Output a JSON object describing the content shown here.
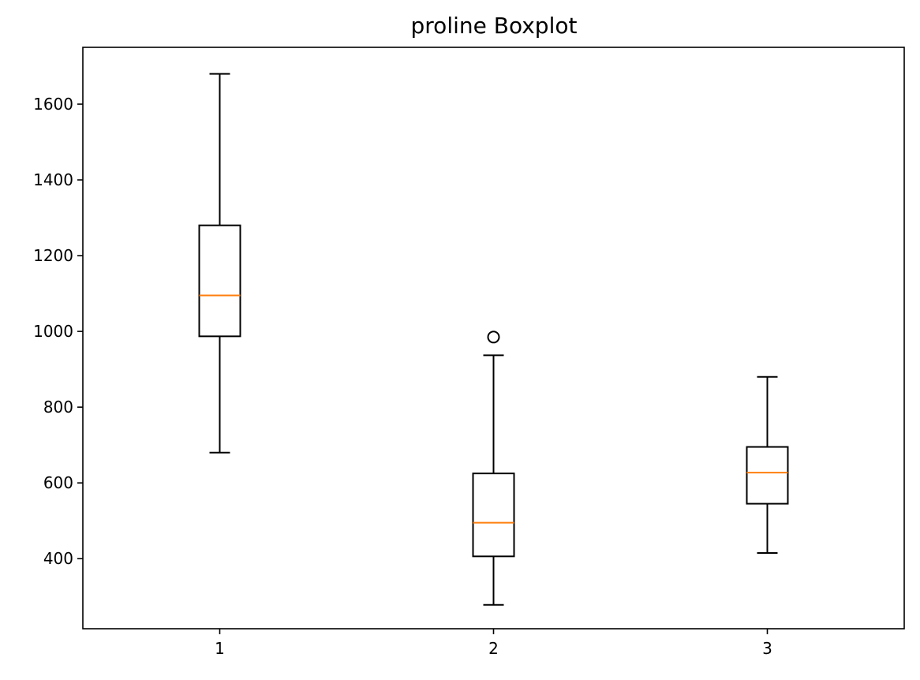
{
  "chart_data": {
    "type": "boxplot",
    "title": "proline Boxplot",
    "xlabel": "",
    "ylabel": "",
    "categories": [
      "1",
      "2",
      "3"
    ],
    "yticks": [
      400,
      600,
      800,
      1000,
      1200,
      1400,
      1600
    ],
    "ylim": [
      215,
      1750
    ],
    "grid": false,
    "boxes": [
      {
        "category": "1",
        "whisker_low": 680,
        "q1": 987,
        "median": 1095,
        "q3": 1280,
        "whisker_high": 1680,
        "outliers": []
      },
      {
        "category": "2",
        "whisker_low": 278,
        "q1": 406,
        "median": 495,
        "q3": 625,
        "whisker_high": 937,
        "outliers": [
          985
        ]
      },
      {
        "category": "3",
        "whisker_low": 415,
        "q1": 545,
        "median": 627,
        "q3": 695,
        "whisker_high": 880,
        "outliers": []
      }
    ],
    "colors": {
      "box": "#000000",
      "median": "#ff7f0e",
      "background": "#ffffff"
    }
  }
}
